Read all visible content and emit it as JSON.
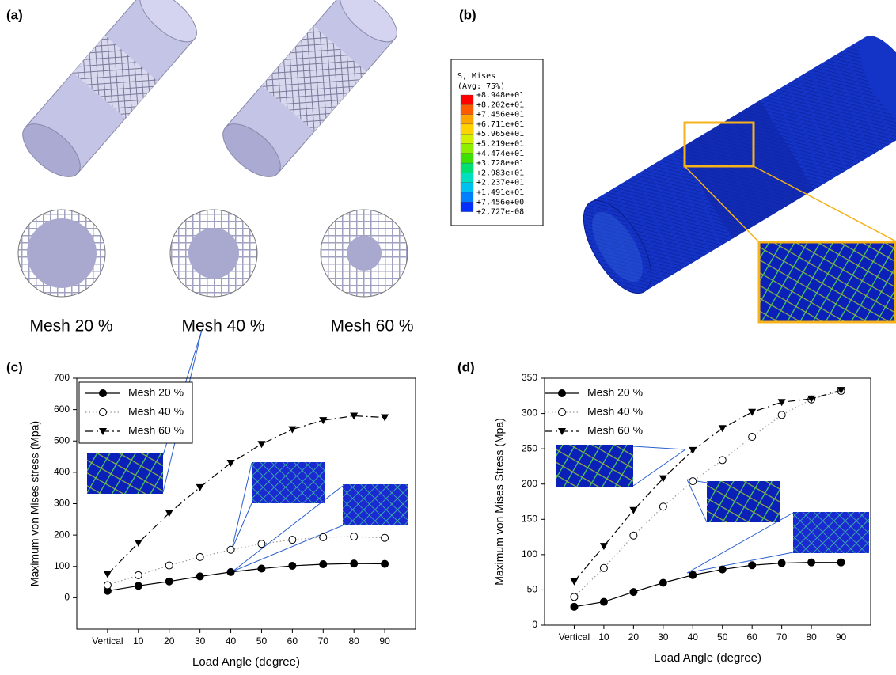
{
  "panel_labels": [
    "(a)",
    "(b)",
    "(c)",
    "(d)"
  ],
  "mesh_labels": [
    "Mesh 20 %",
    "Mesh 40 %",
    "Mesh 60 %"
  ],
  "contour_legend": {
    "title": "S, Mises",
    "subtitle": "(Avg: 75%)",
    "labels": [
      "+8.948e+01",
      "+8.202e+01",
      "+7.456e+01",
      "+6.711e+01",
      "+5.965e+01",
      "+5.219e+01",
      "+4.474e+01",
      "+3.728e+01",
      "+2.983e+01",
      "+2.237e+01",
      "+1.491e+01",
      "+7.456e+00",
      "+2.727e-08"
    ]
  },
  "chart_data": [
    {
      "type": "line",
      "y_label": "Maximum von Mises stress (Mpa)",
      "x_label": "Load Angle (degree)",
      "categories": [
        "Vertical",
        "10",
        "20",
        "30",
        "40",
        "50",
        "60",
        "70",
        "80",
        "90"
      ],
      "ylim": [
        -100,
        700
      ],
      "yticks": [
        0,
        100,
        200,
        300,
        400,
        500,
        600,
        700
      ],
      "legend_frame": true,
      "series": [
        {
          "name": "Mesh 20 %",
          "color": "#000000",
          "marker": "circle-filled",
          "line_style": "solid",
          "values": [
            22,
            38,
            52,
            68,
            82,
            93,
            102,
            107,
            109,
            108
          ]
        },
        {
          "name": "Mesh 40 %",
          "color": "#999999",
          "marker": "circle-open",
          "line_style": "dotted",
          "values": [
            40,
            72,
            103,
            130,
            153,
            172,
            185,
            193,
            195,
            191
          ]
        },
        {
          "name": "Mesh 60 %",
          "color": "#000000",
          "marker": "triangle-down",
          "line_style": "dashed",
          "values": [
            75,
            175,
            270,
            352,
            430,
            490,
            537,
            566,
            580,
            575
          ]
        }
      ]
    },
    {
      "type": "line",
      "y_label": "Maximum von Mises Stress (Mpa)",
      "x_label": "Load Angle (degree)",
      "categories": [
        "Vertical",
        "10",
        "20",
        "30",
        "40",
        "50",
        "60",
        "70",
        "80",
        "90"
      ],
      "ylim": [
        0,
        350
      ],
      "yticks": [
        0,
        50,
        100,
        150,
        200,
        250,
        300,
        350
      ],
      "legend_frame": false,
      "series": [
        {
          "name": "Mesh 20 %",
          "color": "#000000",
          "marker": "circle-filled",
          "line_style": "solid",
          "values": [
            26,
            33,
            47,
            60,
            71,
            79,
            85,
            88,
            89,
            89
          ]
        },
        {
          "name": "Mesh 40 %",
          "color": "#999999",
          "marker": "circle-open",
          "line_style": "dotted",
          "values": [
            40,
            81,
            127,
            168,
            204,
            234,
            267,
            298,
            320,
            332
          ]
        },
        {
          "name": "Mesh 60 %",
          "color": "#000000",
          "marker": "triangle-down",
          "line_style": "dashed",
          "values": [
            62,
            112,
            163,
            208,
            248,
            279,
            302,
            316,
            321,
            333
          ]
        }
      ]
    }
  ]
}
